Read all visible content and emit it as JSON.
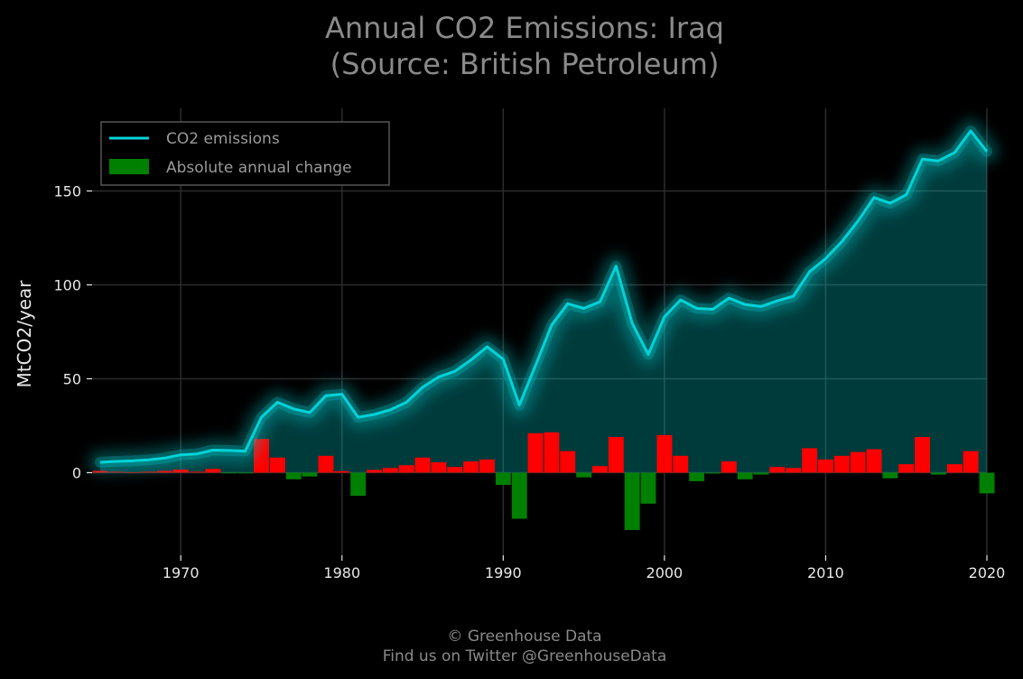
{
  "chart_data": {
    "type": "bar",
    "title_line1": "Annual CO2 Emissions: Iraq",
    "title_line2": "(Source: British Petroleum)",
    "ylabel": "MtCO2/year",
    "xlim": [
      1964.5,
      2020
    ],
    "ylim": [
      -44,
      194
    ],
    "x_ticks": [
      1970,
      1980,
      1990,
      2000,
      2010,
      2020
    ],
    "y_ticks": [
      0,
      50,
      100,
      150
    ],
    "grid": true,
    "legend_position": "top-left",
    "years": [
      1965,
      1966,
      1967,
      1968,
      1969,
      1970,
      1971,
      1972,
      1973,
      1974,
      1975,
      1976,
      1977,
      1978,
      1979,
      1980,
      1981,
      1982,
      1983,
      1984,
      1985,
      1986,
      1987,
      1988,
      1989,
      1990,
      1991,
      1992,
      1993,
      1994,
      1995,
      1996,
      1997,
      1998,
      1999,
      2000,
      2001,
      2002,
      2003,
      2004,
      2005,
      2006,
      2007,
      2008,
      2009,
      2010,
      2011,
      2012,
      2013,
      2014,
      2015,
      2016,
      2017,
      2018,
      2019,
      2020
    ],
    "series": [
      {
        "name": "CO2 emissions",
        "color": "#00d4d8",
        "values": [
          5.5,
          6,
          6.3,
          6.8,
          7.8,
          9.5,
          10,
          12,
          11.8,
          11.5,
          29.5,
          37.5,
          34,
          32,
          41,
          41.8,
          29.5,
          31,
          33.5,
          37.5,
          45.5,
          51,
          54,
          60,
          67,
          60.5,
          36,
          57,
          78.5,
          90,
          87.5,
          91,
          110,
          79.5,
          63,
          83,
          92,
          87.5,
          87,
          93,
          89.5,
          88.5,
          91.5,
          94,
          107,
          114,
          123,
          134,
          146.5,
          143.5,
          148,
          167,
          166,
          170.5,
          182,
          171
        ]
      },
      {
        "name": "Absolute annual change",
        "legend_color": "#008000",
        "positive_color": "#ff0000",
        "negative_color": "#008000",
        "values": [
          1,
          0.5,
          0.3,
          0.5,
          1,
          1.7,
          0.5,
          2,
          -0.2,
          -0.3,
          18,
          8,
          -3.5,
          -2,
          9,
          0.8,
          -12.3,
          1.5,
          2.5,
          4,
          8,
          5.5,
          3,
          6,
          7,
          -6.5,
          -24.5,
          21,
          21.5,
          11.5,
          -2.5,
          3.5,
          19,
          -30.5,
          -16.5,
          20,
          9,
          -4.5,
          -0.5,
          6,
          -3.5,
          -1,
          3,
          2.5,
          13,
          7,
          9,
          11,
          12.5,
          -3,
          4.5,
          19,
          -1,
          4.5,
          11.5,
          -11
        ]
      }
    ],
    "footer_line1": "© Greenhouse Data",
    "footer_line2": "Find us on Twitter @GreenhouseData"
  }
}
